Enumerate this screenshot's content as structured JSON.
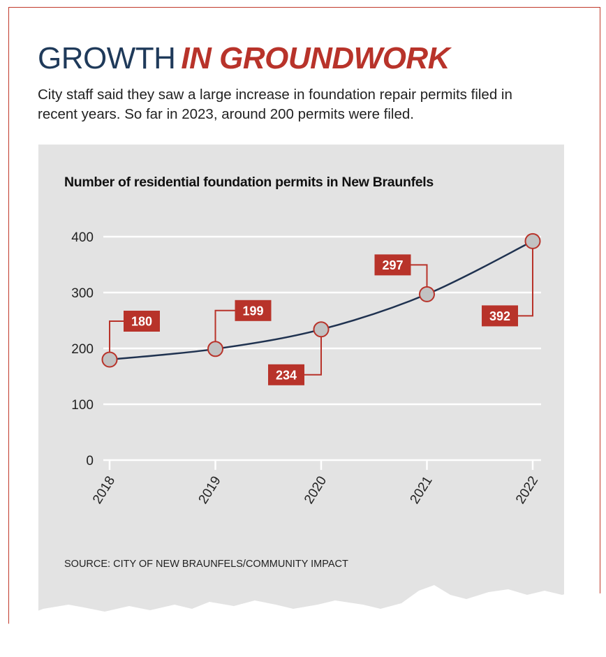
{
  "header": {
    "title_part1": "GROWTH",
    "title_part2": "IN GROUNDWORK",
    "subtitle": "City staff said they saw a large increase in foundation repair permits filed in recent years. So far in 2023, around 200 permits were filed."
  },
  "colors": {
    "accent_red": "#b8332a",
    "title_navy": "#1f3a5a",
    "line": "#1f3250",
    "marker_fill": "#c2c2c2",
    "panel_bg": "#e3e3e3"
  },
  "chart_data": {
    "type": "line",
    "title": "Number of residential foundation permits in New Braunfels",
    "categories": [
      "2018",
      "2019",
      "2020",
      "2021",
      "2022"
    ],
    "series": [
      {
        "values": [
          180,
          199,
          234,
          297,
          392
        ]
      }
    ],
    "data_labels": [
      "180",
      "199",
      "234",
      "297",
      "392"
    ],
    "yticks": [
      0,
      100,
      200,
      300,
      400
    ],
    "ylim": [
      0,
      400
    ],
    "xlabel": "",
    "ylabel": "",
    "grid": true,
    "legend": "none"
  },
  "footer": {
    "source": "SOURCE: CITY OF NEW BRAUNFELS/COMMUNITY IMPACT"
  }
}
